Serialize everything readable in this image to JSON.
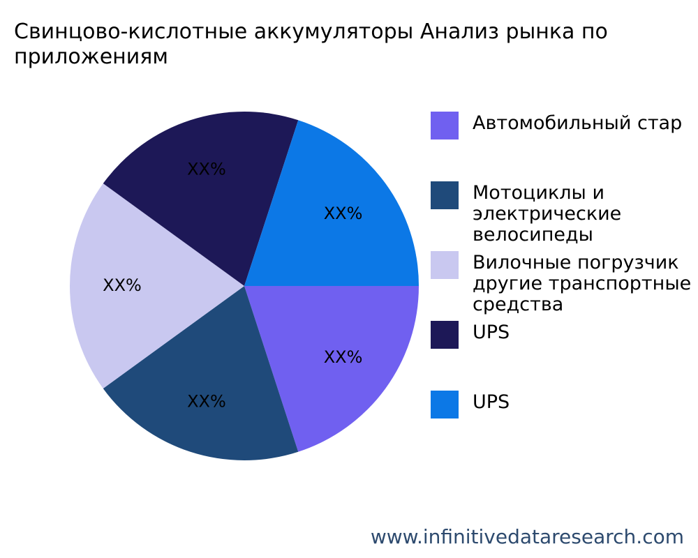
{
  "chart_data": {
    "type": "pie",
    "title": "Свинцово-кислотные аккумуляторы Анализ рынка по\nприложениям",
    "categories": [
      "Автомобильный стар",
      "Мотоциклы и\nэлектрические\nвелосипеды",
      "Вилочные погрузчик\nдругие транспортные\nсредства",
      "UPS",
      "UPS"
    ],
    "values": [
      20,
      20,
      20,
      20,
      20
    ],
    "value_labels": [
      "XX%",
      "XX%",
      "XX%",
      "XX%",
      "XX%"
    ],
    "colors": [
      "#7060f0",
      "#1f4a7a",
      "#c9c8f0",
      "#1d1857",
      "#0c78e6"
    ],
    "footer": "www.infinitivedataresearch.com"
  }
}
